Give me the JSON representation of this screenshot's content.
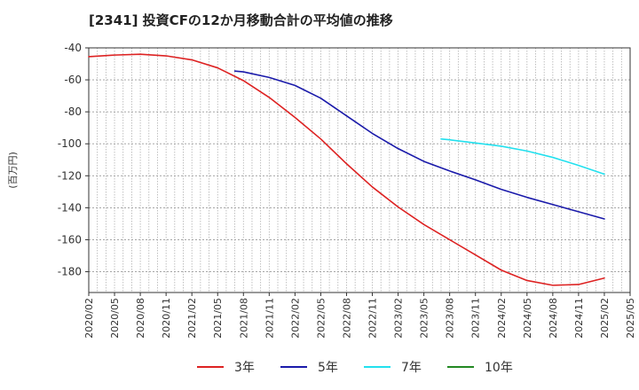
{
  "chart_data": {
    "type": "line",
    "title": "[2341]  投資CFの12か月移動合計の平均値の推移",
    "ylabel": "(百万円)",
    "xlabel": "",
    "ylim": [
      -193,
      -40
    ],
    "yticks": [
      -40,
      -60,
      -80,
      -100,
      -120,
      -140,
      -160,
      -180
    ],
    "xlim": [
      "2020-02",
      "2025-05"
    ],
    "xticks": [
      "2020/02",
      "2020/05",
      "2020/08",
      "2020/11",
      "2021/02",
      "2021/05",
      "2021/08",
      "2021/11",
      "2022/02",
      "2022/05",
      "2022/08",
      "2022/11",
      "2023/02",
      "2023/05",
      "2023/08",
      "2023/11",
      "2024/02",
      "2024/05",
      "2024/08",
      "2024/11",
      "2025/02",
      "2025/05"
    ],
    "grid": true,
    "legend_position": "bottom",
    "series": [
      {
        "name": "3年",
        "color": "#dd2222",
        "points": [
          [
            "2020-02",
            -45.5
          ],
          [
            "2020-05",
            -44.5
          ],
          [
            "2020-08",
            -44.0
          ],
          [
            "2020-11",
            -45.0
          ],
          [
            "2021-02",
            -47.5
          ],
          [
            "2021-05",
            -52.5
          ],
          [
            "2021-08",
            -60.5
          ],
          [
            "2021-11",
            -71.0
          ],
          [
            "2022-02",
            -83.5
          ],
          [
            "2022-05",
            -97.0
          ],
          [
            "2022-08",
            -112.5
          ],
          [
            "2022-11",
            -127.0
          ],
          [
            "2023-02",
            -139.5
          ],
          [
            "2023-05",
            -150.5
          ],
          [
            "2023-08",
            -160.0
          ],
          [
            "2023-11",
            -169.5
          ],
          [
            "2024-02",
            -179.0
          ],
          [
            "2024-05",
            -185.5
          ],
          [
            "2024-08",
            -188.5
          ],
          [
            "2024-11",
            -188.0
          ],
          [
            "2025-02",
            -184.0
          ]
        ]
      },
      {
        "name": "5年",
        "color": "#1a1aaa",
        "points": [
          [
            "2021-07",
            -54.5
          ],
          [
            "2021-08",
            -55.0
          ],
          [
            "2021-11",
            -58.5
          ],
          [
            "2022-02",
            -63.5
          ],
          [
            "2022-05",
            -71.5
          ],
          [
            "2022-08",
            -82.5
          ],
          [
            "2022-11",
            -93.5
          ],
          [
            "2023-02",
            -103.0
          ],
          [
            "2023-05",
            -111.0
          ],
          [
            "2023-08",
            -117.0
          ],
          [
            "2023-11",
            -122.5
          ],
          [
            "2024-02",
            -128.5
          ],
          [
            "2024-05",
            -133.5
          ],
          [
            "2024-08",
            -138.0
          ],
          [
            "2024-11",
            -142.5
          ],
          [
            "2025-02",
            -147.0
          ]
        ]
      },
      {
        "name": "7年",
        "color": "#22e0ee",
        "points": [
          [
            "2023-07",
            -97.0
          ],
          [
            "2023-08",
            -97.5
          ],
          [
            "2023-11",
            -99.5
          ],
          [
            "2024-02",
            -101.5
          ],
          [
            "2024-05",
            -104.5
          ],
          [
            "2024-08",
            -108.5
          ],
          [
            "2024-11",
            -113.5
          ],
          [
            "2025-02",
            -119.0
          ]
        ]
      },
      {
        "name": "10年",
        "color": "#228822",
        "points": []
      }
    ]
  }
}
